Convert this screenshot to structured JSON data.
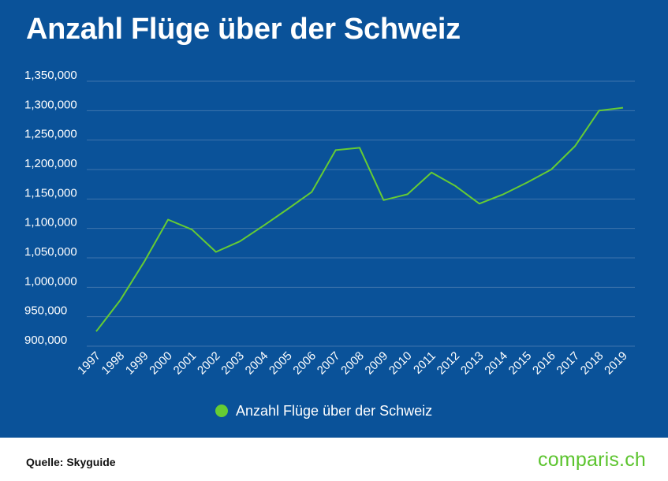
{
  "header": {
    "title": "Anzahl Flüge über der Schweiz"
  },
  "footer": {
    "source": "Quelle: Skyguide",
    "brand": "comparis.ch"
  },
  "colors": {
    "background": "#0a5299",
    "line": "#66cc33",
    "grid": "#3f74ad",
    "text": "#ffffff",
    "brand": "#5cc42e"
  },
  "chart_data": {
    "type": "line",
    "title": "Anzahl Flüge über der Schweiz",
    "xlabel": "",
    "ylabel": "",
    "x": [
      "1997",
      "1998",
      "1999",
      "2000",
      "2001",
      "2002",
      "2003",
      "2004",
      "2005",
      "2006",
      "2007",
      "2008",
      "2009",
      "2010",
      "2011",
      "2012",
      "2013",
      "2014",
      "2015",
      "2016",
      "2017",
      "2018",
      "2019"
    ],
    "y_ticks": [
      "900,000",
      "950,000",
      "1,000,000",
      "1,050,000",
      "1,100,000",
      "1,150,000",
      "1,200,000",
      "1,250,000",
      "1,300,000",
      "1,350,000"
    ],
    "ylim": [
      880000,
      1350000
    ],
    "grid": true,
    "legend_position": "bottom-center",
    "series": [
      {
        "name": "Anzahl Flüge über der Schweiz",
        "values": [
          925000,
          978000,
          1043000,
          1115000,
          1098000,
          1060000,
          1078000,
          1105000,
          1133000,
          1162000,
          1233000,
          1237000,
          1148000,
          1158000,
          1195000,
          1172000,
          1142000,
          1158000,
          1178000,
          1200000,
          1240000,
          1300000,
          1305000
        ]
      }
    ]
  }
}
